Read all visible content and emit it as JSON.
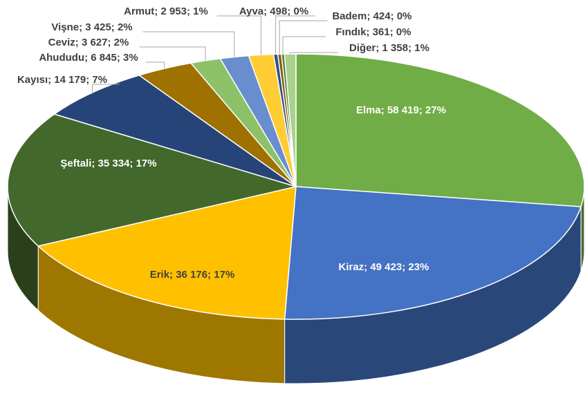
{
  "chart_data": {
    "type": "pie",
    "categories": [
      "Elma",
      "Kiraz",
      "Erik",
      "Şeftali",
      "Kayısı",
      "Ahududu",
      "Ceviz",
      "Vişne",
      "Armut",
      "Ayva",
      "Badem",
      "Fındık",
      "Diğer"
    ],
    "values": [
      58419,
      49423,
      36176,
      35334,
      14179,
      6845,
      3627,
      3425,
      2953,
      498,
      424,
      361,
      1358
    ],
    "value_labels": [
      "Elma; 58 419; 27%",
      "Kiraz; 49 423; 23%",
      "Erik; 36 176; 17%",
      "Şeftali; 35 334; 17%",
      "Kayısı; 14 179; 7%",
      "Ahududu; 6 845; 3%",
      "Ceviz; 3 627; 2%",
      "Vişne; 3 425; 2%",
      "Armut; 2 953; 1%",
      "Ayva; 498; 0%",
      "Badem; 424; 0%",
      "Fındık; 361; 0%",
      "Diğer; 1 358; 1%"
    ],
    "colors": [
      "#70ad47",
      "#4472c4",
      "#ffc000",
      "#43682b",
      "#264478",
      "#9e7100",
      "#8cc168",
      "#698ed0",
      "#ffcd33",
      "#2f4f8f",
      "#7f6000",
      "#548235",
      "#a9d18e"
    ]
  }
}
